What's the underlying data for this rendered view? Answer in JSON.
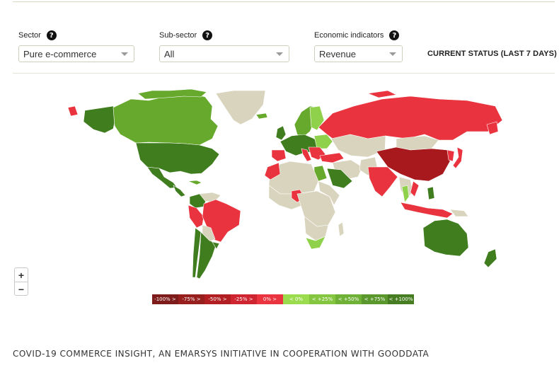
{
  "filters": [
    {
      "label": "Sector",
      "value": "Pure e-commerce",
      "help": "?"
    },
    {
      "label": "Sub-sector",
      "value": "All",
      "help": "?"
    },
    {
      "label": "Economic indicators",
      "value": "Revenue",
      "help": "?"
    }
  ],
  "status": "CURRENT STATUS (LAST 7 DAYS)",
  "map": {
    "colors": {
      "dark_green": "#3f7d1f",
      "mid_green": "#66a92c",
      "light_green": "#8fd14a",
      "bright_red": "#e9343f",
      "dark_red": "#a8191d",
      "no_data": "#d8d4bd"
    },
    "zoom": {
      "in": "+",
      "out": "−"
    },
    "legend": [
      {
        "label": "-100% >",
        "color": "#7e1c1c"
      },
      {
        "label": "-75% >",
        "color": "#97201f"
      },
      {
        "label": "-50% >",
        "color": "#b11f22"
      },
      {
        "label": "-25% >",
        "color": "#cf2530"
      },
      {
        "label": "0% >",
        "color": "#ea3440"
      },
      {
        "label": "< 0%",
        "color": "#9bdc4f"
      },
      {
        "label": "< +25%",
        "color": "#84c640"
      },
      {
        "label": "< +50%",
        "color": "#6fb136"
      },
      {
        "label": "< +75%",
        "color": "#5a972c"
      },
      {
        "label": "< +100%",
        "color": "#467d22"
      }
    ]
  },
  "footer": "COVID-19 COMMERCE INSIGHT, AN EMARSYS INITIATIVE IN COOPERATION WITH GOODDATA"
}
